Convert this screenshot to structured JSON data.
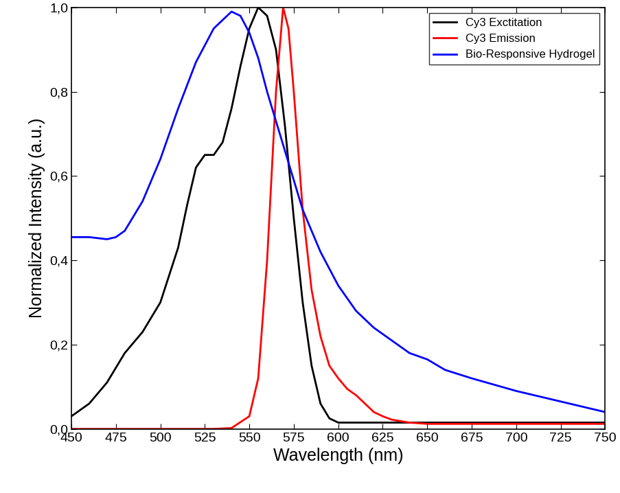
{
  "chart_data": {
    "type": "line",
    "x_label": "Wavelength (nm)",
    "y_label": "Normalized Intensity (a.u.)",
    "xlim": [
      450,
      750
    ],
    "xticks": [
      450,
      475,
      500,
      525,
      550,
      575,
      600,
      625,
      650,
      675,
      700,
      725,
      750
    ],
    "ylim": [
      0.0,
      1.0
    ],
    "yticks": [
      {
        "value": 0.0,
        "label": "0,0"
      },
      {
        "value": 0.2,
        "label": "0,2"
      },
      {
        "value": 0.4,
        "label": "0,4"
      },
      {
        "value": 0.6,
        "label": "0,6"
      },
      {
        "value": 0.8,
        "label": "0,8"
      },
      {
        "value": 1.0,
        "label": "1,0"
      }
    ],
    "grid": false,
    "legend": "upper right",
    "series": [
      {
        "name": "Cy3 Exctitation",
        "color": "#000000",
        "x": [
          450,
          460,
          470,
          480,
          490,
          500,
          510,
          515,
          520,
          525,
          530,
          535,
          540,
          545,
          550,
          555,
          560,
          565,
          570,
          575,
          580,
          585,
          590,
          595,
          600,
          650,
          700,
          750
        ],
        "values": [
          0.03,
          0.06,
          0.11,
          0.18,
          0.23,
          0.3,
          0.43,
          0.53,
          0.62,
          0.65,
          0.65,
          0.68,
          0.76,
          0.86,
          0.95,
          1.0,
          0.98,
          0.9,
          0.72,
          0.5,
          0.3,
          0.15,
          0.06,
          0.025,
          0.015,
          0.015,
          0.015,
          0.015
        ]
      },
      {
        "name": "Cy3 Emission",
        "color": "#ff0000",
        "x": [
          450,
          500,
          530,
          540,
          550,
          555,
          560,
          565,
          569,
          572,
          575,
          580,
          585,
          590,
          595,
          600,
          605,
          610,
          615,
          620,
          625,
          630,
          640,
          650,
          700,
          750
        ],
        "values": [
          0.0,
          0.0,
          0.0,
          0.002,
          0.03,
          0.12,
          0.4,
          0.8,
          1.0,
          0.95,
          0.8,
          0.52,
          0.33,
          0.22,
          0.15,
          0.12,
          0.095,
          0.08,
          0.06,
          0.04,
          0.03,
          0.022,
          0.015,
          0.012,
          0.012,
          0.012
        ]
      },
      {
        "name": "Bio-Responsive Hydrogel",
        "color": "#0000ff",
        "x": [
          450,
          460,
          470,
          475,
          480,
          490,
          500,
          510,
          520,
          530,
          540,
          545,
          550,
          555,
          560,
          565,
          570,
          575,
          580,
          590,
          600,
          610,
          620,
          630,
          640,
          650,
          660,
          675,
          700,
          725,
          750
        ],
        "values": [
          0.455,
          0.455,
          0.45,
          0.455,
          0.47,
          0.54,
          0.64,
          0.76,
          0.87,
          0.95,
          0.99,
          0.98,
          0.94,
          0.88,
          0.8,
          0.73,
          0.66,
          0.59,
          0.52,
          0.42,
          0.34,
          0.28,
          0.24,
          0.21,
          0.18,
          0.165,
          0.14,
          0.12,
          0.09,
          0.065,
          0.04
        ]
      }
    ]
  }
}
